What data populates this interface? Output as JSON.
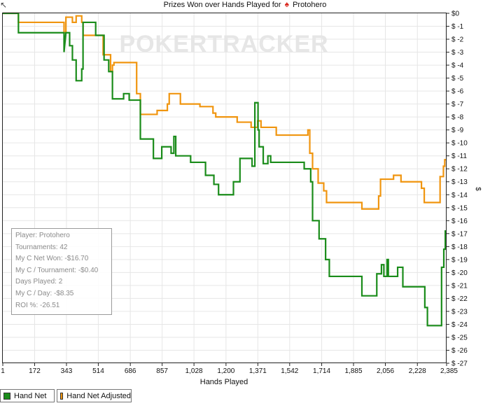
{
  "title": {
    "prefix": "Prizes Won over Hands Played for",
    "player": "Protohero",
    "icon": "poker-chip-icon"
  },
  "watermark": {
    "text": "POKERTRACKER"
  },
  "stats": {
    "player": "Player: Protohero",
    "tournaments": "Tournaments: 42",
    "net_won": "My C Net Won: -$16.70",
    "per_tournament": "My C / Tournament: -$0.40",
    "days_played": "Days Played: 2",
    "per_day": "My C / Day: -$8.35",
    "roi": "ROI %: -26.51"
  },
  "chart_data": {
    "type": "line",
    "xlabel": "Hands Played",
    "ylabel": "$",
    "xlim": [
      1,
      2385
    ],
    "ylim": [
      -27,
      0
    ],
    "x_ticks": [
      1,
      172,
      343,
      514,
      686,
      857,
      1028,
      1200,
      1371,
      1542,
      1714,
      1885,
      2056,
      2228,
      2385
    ],
    "x_tick_labels": [
      "1",
      "172",
      "343",
      "514",
      "686",
      "857",
      "1,028",
      "1,200",
      "1,371",
      "1,542",
      "1,714",
      "1,885",
      "2,056",
      "2,228",
      "2,385"
    ],
    "y_ticks": [
      0,
      -1,
      -2,
      -3,
      -4,
      -5,
      -6,
      -7,
      -8,
      -9,
      -10,
      -11,
      -12,
      -13,
      -14,
      -15,
      -16,
      -17,
      -18,
      -19,
      -20,
      -21,
      -22,
      -23,
      -24,
      -25,
      -26,
      -27
    ],
    "y_tick_labels": [
      "$0",
      "$ -1",
      "$ -2",
      "$ -3",
      "$ -4",
      "$ -5",
      "$ -6",
      "$ -7",
      "$ -8",
      "$ -9",
      "$ -10",
      "$ -11",
      "$ -12",
      "$ -13",
      "$ -14",
      "$ -15",
      "$ -16",
      "$ -17",
      "$ -18",
      "$ -19",
      "$ -20",
      "$ -21",
      "$ -22",
      "$ -23",
      "$ -24",
      "$ -25",
      "$ -26",
      "$ -27"
    ],
    "y_axis_side": "right",
    "grid": true,
    "legend_position": "bottom-left",
    "series": [
      {
        "name": "Hand Net",
        "color": "#1a8c1a",
        "step": true,
        "points": [
          [
            1,
            0
          ],
          [
            85,
            0
          ],
          [
            85,
            -1.5
          ],
          [
            330,
            -1.5
          ],
          [
            330,
            -3
          ],
          [
            340,
            -1.5
          ],
          [
            360,
            -1.5
          ],
          [
            360,
            -2.5
          ],
          [
            375,
            -2.5
          ],
          [
            375,
            -3.6
          ],
          [
            395,
            -3.6
          ],
          [
            395,
            -5.2
          ],
          [
            425,
            -5.2
          ],
          [
            425,
            -4.3
          ],
          [
            432,
            -4.3
          ],
          [
            432,
            -0.7
          ],
          [
            500,
            -0.7
          ],
          [
            500,
            -1.7
          ],
          [
            545,
            -1.7
          ],
          [
            545,
            -3.6
          ],
          [
            570,
            -3.6
          ],
          [
            570,
            -4.5
          ],
          [
            590,
            -4.5
          ],
          [
            590,
            -6.6
          ],
          [
            650,
            -6.6
          ],
          [
            650,
            -6.2
          ],
          [
            680,
            -6.2
          ],
          [
            680,
            -6.7
          ],
          [
            740,
            -6.7
          ],
          [
            740,
            -9.7
          ],
          [
            810,
            -9.7
          ],
          [
            810,
            -11.2
          ],
          [
            855,
            -11.2
          ],
          [
            855,
            -10.3
          ],
          [
            905,
            -10.3
          ],
          [
            905,
            -10.8
          ],
          [
            920,
            -10.8
          ],
          [
            920,
            -9.5
          ],
          [
            930,
            -9.5
          ],
          [
            930,
            -11.0
          ],
          [
            1010,
            -11.0
          ],
          [
            1010,
            -11.5
          ],
          [
            1090,
            -11.5
          ],
          [
            1090,
            -12.5
          ],
          [
            1135,
            -12.5
          ],
          [
            1135,
            -13.2
          ],
          [
            1160,
            -13.2
          ],
          [
            1160,
            -14
          ],
          [
            1240,
            -14
          ],
          [
            1240,
            -13
          ],
          [
            1275,
            -13
          ],
          [
            1275,
            -11.2
          ],
          [
            1340,
            -11.2
          ],
          [
            1340,
            -11.8
          ],
          [
            1355,
            -11.8
          ],
          [
            1355,
            -6.9
          ],
          [
            1372,
            -6.9
          ],
          [
            1372,
            -9
          ],
          [
            1378,
            -9
          ],
          [
            1378,
            -10.3
          ],
          [
            1400,
            -10.3
          ],
          [
            1400,
            -11.6
          ],
          [
            1425,
            -11.6
          ],
          [
            1425,
            -11.0
          ],
          [
            1440,
            -11.0
          ],
          [
            1440,
            -11.5
          ],
          [
            1620,
            -11.5
          ],
          [
            1620,
            -12
          ],
          [
            1655,
            -12
          ],
          [
            1655,
            -13
          ],
          [
            1665,
            -13
          ],
          [
            1665,
            -16
          ],
          [
            1700,
            -16
          ],
          [
            1700,
            -17.4
          ],
          [
            1735,
            -17.4
          ],
          [
            1735,
            -19
          ],
          [
            1755,
            -19
          ],
          [
            1755,
            -20.3
          ],
          [
            1930,
            -20.3
          ],
          [
            1930,
            -21.8
          ],
          [
            2010,
            -21.8
          ],
          [
            2010,
            -20.1
          ],
          [
            2035,
            -20.1
          ],
          [
            2035,
            -19.4
          ],
          [
            2048,
            -19.4
          ],
          [
            2048,
            -20.3
          ],
          [
            2065,
            -20.3
          ],
          [
            2065,
            -19
          ],
          [
            2072,
            -19
          ],
          [
            2072,
            -20.3
          ],
          [
            2122,
            -20.3
          ],
          [
            2122,
            -19.6
          ],
          [
            2150,
            -19.6
          ],
          [
            2150,
            -21.1
          ],
          [
            2268,
            -21.1
          ],
          [
            2268,
            -22.7
          ],
          [
            2282,
            -22.7
          ],
          [
            2282,
            -24.1
          ],
          [
            2358,
            -24.1
          ],
          [
            2358,
            -19.6
          ],
          [
            2370,
            -19.6
          ],
          [
            2370,
            -18.2
          ],
          [
            2378,
            -18.2
          ],
          [
            2378,
            -16.8
          ],
          [
            2385,
            -16.8
          ]
        ]
      },
      {
        "name": "Hand Net Adjusted",
        "color": "#f0950f",
        "step": true,
        "points": [
          [
            1,
            0
          ],
          [
            85,
            0
          ],
          [
            85,
            -0.7
          ],
          [
            330,
            -0.7
          ],
          [
            330,
            -1.5
          ],
          [
            340,
            -1.5
          ],
          [
            340,
            -0.3
          ],
          [
            375,
            -0.3
          ],
          [
            375,
            -0.7
          ],
          [
            395,
            -0.7
          ],
          [
            395,
            -0.2
          ],
          [
            425,
            -0.2
          ],
          [
            425,
            -0.7
          ],
          [
            432,
            -0.7
          ],
          [
            432,
            -1.7
          ],
          [
            540,
            -1.7
          ],
          [
            540,
            -3.2
          ],
          [
            580,
            -3.2
          ],
          [
            580,
            -4.5
          ],
          [
            590,
            -4.5
          ],
          [
            590,
            -4.0
          ],
          [
            598,
            -4.0
          ],
          [
            598,
            -3.8
          ],
          [
            720,
            -3.8
          ],
          [
            720,
            -6.2
          ],
          [
            740,
            -6.2
          ],
          [
            740,
            -7.8
          ],
          [
            830,
            -7.8
          ],
          [
            830,
            -7.5
          ],
          [
            885,
            -7.5
          ],
          [
            885,
            -7.0
          ],
          [
            895,
            -7.0
          ],
          [
            895,
            -6.2
          ],
          [
            955,
            -6.2
          ],
          [
            955,
            -7.0
          ],
          [
            1060,
            -7.0
          ],
          [
            1060,
            -7.2
          ],
          [
            1130,
            -7.2
          ],
          [
            1130,
            -7.7
          ],
          [
            1145,
            -7.7
          ],
          [
            1145,
            -8.0
          ],
          [
            1260,
            -8.0
          ],
          [
            1260,
            -8.4
          ],
          [
            1335,
            -8.4
          ],
          [
            1335,
            -8.8
          ],
          [
            1370,
            -8.8
          ],
          [
            1370,
            -8.3
          ],
          [
            1388,
            -8.3
          ],
          [
            1388,
            -8.8
          ],
          [
            1470,
            -8.8
          ],
          [
            1470,
            -9.4
          ],
          [
            1640,
            -9.4
          ],
          [
            1640,
            -9.0
          ],
          [
            1650,
            -9.0
          ],
          [
            1650,
            -10.8
          ],
          [
            1665,
            -10.8
          ],
          [
            1665,
            -12
          ],
          [
            1695,
            -12
          ],
          [
            1695,
            -13.1
          ],
          [
            1725,
            -13.1
          ],
          [
            1725,
            -13.7
          ],
          [
            1740,
            -13.7
          ],
          [
            1740,
            -14.6
          ],
          [
            1930,
            -14.6
          ],
          [
            1930,
            -15.1
          ],
          [
            2020,
            -15.1
          ],
          [
            2020,
            -14.1
          ],
          [
            2030,
            -14.1
          ],
          [
            2030,
            -12.8
          ],
          [
            2100,
            -12.8
          ],
          [
            2100,
            -12.5
          ],
          [
            2140,
            -12.5
          ],
          [
            2140,
            -13
          ],
          [
            2250,
            -13
          ],
          [
            2250,
            -13.5
          ],
          [
            2265,
            -13.5
          ],
          [
            2265,
            -14.6
          ],
          [
            2350,
            -14.6
          ],
          [
            2350,
            -12.6
          ],
          [
            2368,
            -12.6
          ],
          [
            2368,
            -11.8
          ],
          [
            2375,
            -11.8
          ],
          [
            2375,
            -11.3
          ],
          [
            2385,
            -11.3
          ]
        ]
      }
    ]
  }
}
